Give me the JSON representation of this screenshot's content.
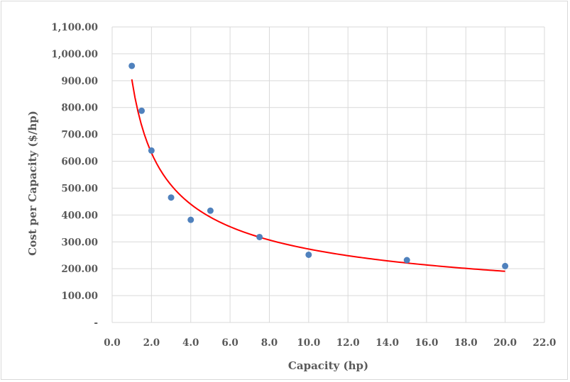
{
  "chart_data": {
    "type": "scatter",
    "title": "",
    "xlabel": "Capacity (hp)",
    "ylabel": "Cost per Capacity  ($/hp)",
    "xlim": [
      0,
      22
    ],
    "ylim": [
      0,
      1100
    ],
    "x_ticks": [
      0,
      2,
      4,
      6,
      8,
      10,
      12,
      14,
      16,
      18,
      20,
      22
    ],
    "x_tick_labels": [
      "0.0",
      "2.0",
      "4.0",
      "6.0",
      "8.0",
      "10.0",
      "12.0",
      "14.0",
      "16.0",
      "18.0",
      "20.0",
      "22.0"
    ],
    "y_ticks": [
      0,
      100,
      200,
      300,
      400,
      500,
      600,
      700,
      800,
      900,
      1000,
      1100
    ],
    "y_tick_labels": [
      "-",
      "100.00",
      "200.00",
      "300.00",
      "400.00",
      "500.00",
      "600.00",
      "700.00",
      "800.00",
      "900.00",
      "1,000.00",
      "1,100.00"
    ],
    "grid": true,
    "legend": "none",
    "points": {
      "x": [
        1,
        1.5,
        2,
        3,
        4,
        5,
        7.5,
        10,
        15,
        20
      ],
      "y": [
        955,
        788,
        640,
        465,
        382,
        416,
        318,
        252,
        232,
        210
      ],
      "color": "#4f81bd"
    },
    "trendline": {
      "type": "power",
      "coefficient": 905,
      "exponent": -0.52,
      "x_range": [
        1,
        20
      ],
      "color": "#ff0000"
    }
  }
}
